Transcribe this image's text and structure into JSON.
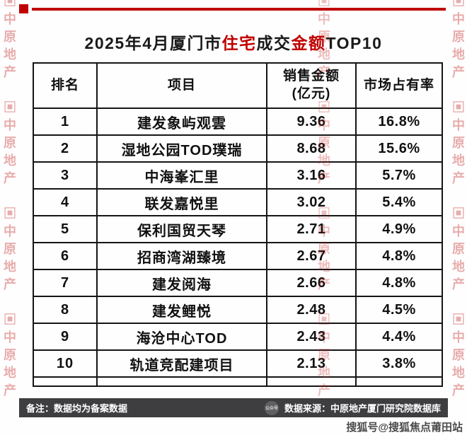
{
  "accent_color": "#c00000",
  "title": {
    "part1": "2025年4月厦门市",
    "part2_red": "住宅",
    "part3": "成交",
    "part4_red": "金额",
    "part5": "TOP10"
  },
  "table_headers": {
    "rank": "排名",
    "project": "项目",
    "sales_line1": "销售金额",
    "sales_line2": "(亿元)",
    "share": "市场占有率"
  },
  "chart_data": {
    "type": "table",
    "title": "2025年4月厦门市住宅成交金额TOP10",
    "columns": [
      "排名",
      "项目",
      "销售金额(亿元)",
      "市场占有率"
    ],
    "rows": [
      [
        "1",
        "建发象屿观雲",
        "9.36",
        "16.8%"
      ],
      [
        "2",
        "湿地公园TOD璞瑞",
        "8.68",
        "15.6%"
      ],
      [
        "3",
        "中海峯汇里",
        "3.16",
        "5.7%"
      ],
      [
        "4",
        "联发嘉悦里",
        "3.02",
        "5.4%"
      ],
      [
        "5",
        "保利国贸天琴",
        "2.71",
        "4.9%"
      ],
      [
        "6",
        "招商湾湖臻境",
        "2.67",
        "4.8%"
      ],
      [
        "7",
        "建发阅海",
        "2.66",
        "4.8%"
      ],
      [
        "8",
        "建发鲤悦",
        "2.48",
        "4.5%"
      ],
      [
        "9",
        "海沧中心TOD",
        "2.43",
        "4.4%"
      ],
      [
        "10",
        "轨道竞配建项目",
        "2.13",
        "3.8%"
      ]
    ]
  },
  "footer": {
    "note": "备注：数据均为备案数据",
    "source": "数据来源：中原地产厦门研究院数据库",
    "gongzhonghao": "公众号"
  },
  "watermarks": {
    "side_text": "中原地产",
    "logo_glyph": "▣",
    "bottom_right": "搜狐号@搜狐焦点莆田站"
  }
}
